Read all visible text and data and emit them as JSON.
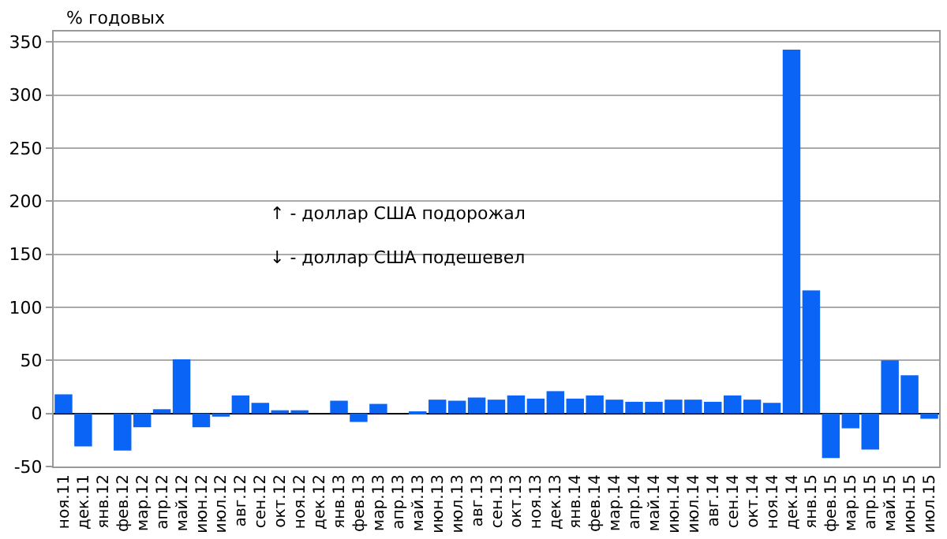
{
  "chart_data": {
    "type": "bar",
    "ylabel": "% годовых",
    "categories": [
      "ноя.11",
      "дек.11",
      "янв.12",
      "фев.12",
      "мар.12",
      "апр.12",
      "май.12",
      "июн.12",
      "июл.12",
      "авг.12",
      "сен.12",
      "окт.12",
      "ноя.12",
      "дек.12",
      "янв.13",
      "фев.13",
      "мар.13",
      "апр.13",
      "май.13",
      "июн.13",
      "июл.13",
      "авг.13",
      "сен.13",
      "окт.13",
      "ноя.13",
      "дек.13",
      "янв.14",
      "фев.14",
      "мар.14",
      "апр.14",
      "май.14",
      "июн.14",
      "июл.14",
      "авг.14",
      "сен.14",
      "окт.14",
      "ноя.14",
      "дек.14",
      "янв.15",
      "фев.15",
      "мар.15",
      "апр.15",
      "май.15",
      "июн.15",
      "июл.15"
    ],
    "values": [
      18,
      -31,
      0,
      -35,
      -13,
      4,
      51,
      -13,
      -3,
      17,
      10,
      3,
      3,
      0,
      12,
      -8,
      9,
      0,
      2,
      13,
      12,
      15,
      13,
      17,
      14,
      21,
      14,
      17,
      13,
      11,
      11,
      13,
      13,
      11,
      17,
      13,
      10,
      343,
      116,
      -42,
      -14,
      -34,
      50,
      36,
      -5
    ],
    "color": "#0a64f5",
    "ylim": [
      -50,
      360
    ],
    "yticks": [
      -50,
      0,
      50,
      100,
      150,
      200,
      250,
      300,
      350
    ],
    "grid": "y",
    "annotations": [
      "↑ - доллар США подорожал",
      "↓ - доллар США подешевел"
    ]
  }
}
